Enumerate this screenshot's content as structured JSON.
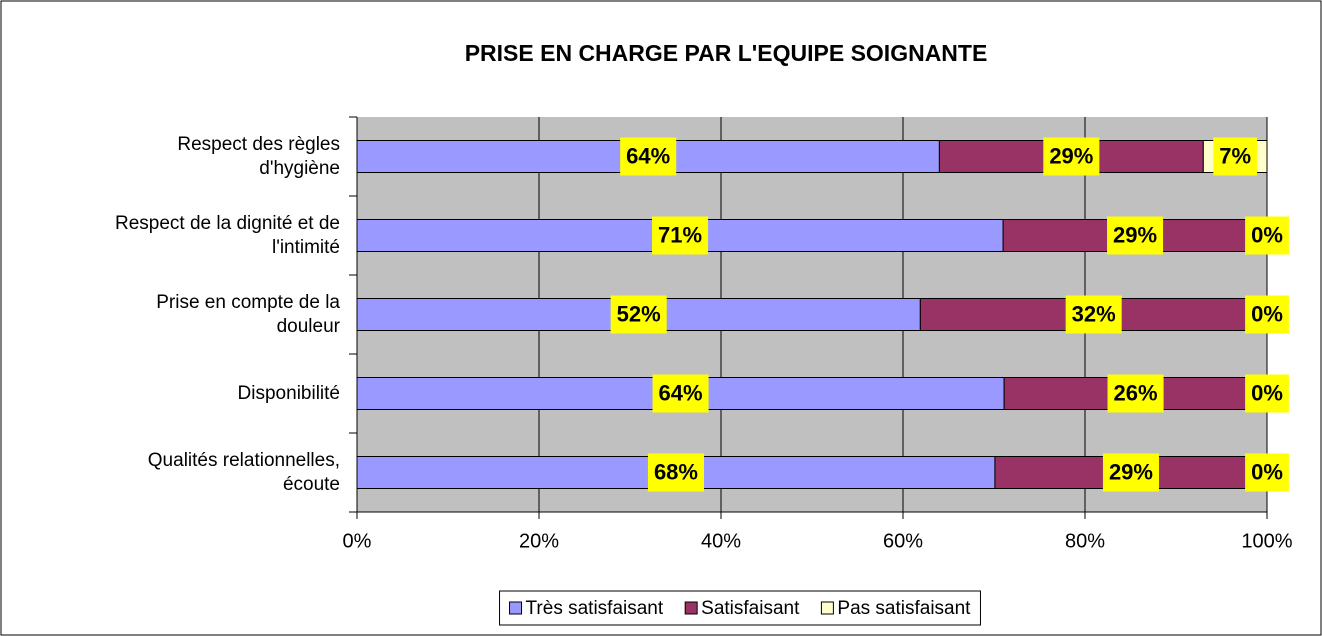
{
  "chart_data": {
    "type": "stacked-bar-horizontal",
    "stacking": "percent",
    "title": "PRISE EN CHARGE PAR L'EQUIPE SOIGNANTE",
    "categories": [
      "Respect des règles\nd'hygiène",
      "Respect de la dignité et de\nl'intimité",
      "Prise en compte de la\ndouleur",
      "Disponibilité",
      "Qualités relationnelles,\nécoute"
    ],
    "series": [
      {
        "name": "Très satisfaisant",
        "color": "#9999ff",
        "values": [
          64,
          71,
          52,
          64,
          68
        ],
        "value_labels": [
          "64%",
          "71%",
          "52%",
          "64%",
          "68%"
        ]
      },
      {
        "name": "Satisfaisant",
        "color": "#993366",
        "values": [
          29,
          29,
          32,
          26,
          29
        ],
        "value_labels": [
          "29%",
          "29%",
          "32%",
          "26%",
          "29%"
        ]
      },
      {
        "name": "Pas satisfaisant",
        "color": "#ffffcc",
        "values": [
          7,
          0,
          0,
          0,
          0
        ],
        "value_labels": [
          "7%",
          "0%",
          "0%",
          "0%",
          "0%"
        ]
      }
    ],
    "xlim": [
      0,
      100
    ],
    "xticks": [
      {
        "value": 0,
        "label": "0%"
      },
      {
        "value": 20,
        "label": "20%"
      },
      {
        "value": 40,
        "label": "40%"
      },
      {
        "value": 60,
        "label": "60%"
      },
      {
        "value": 80,
        "label": "80%"
      },
      {
        "value": 100,
        "label": "100%"
      }
    ],
    "grid": true,
    "legend": "bottom",
    "plot_background": "#c0c0c0",
    "label_background": "#ffff00"
  }
}
